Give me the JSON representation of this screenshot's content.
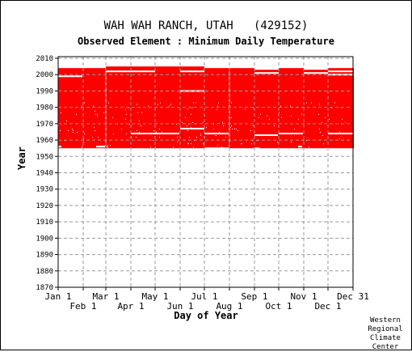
{
  "header": {
    "title": "WAH WAH RANCH, UTAH   (429152)",
    "subtitle": "Observed Element : Minimum Daily Temperature"
  },
  "credit": [
    "Western",
    "Regional",
    "Climate",
    "Center"
  ],
  "chart_data": {
    "type": "heatmap",
    "title": "WAH WAH RANCH, UTAH   (429152)",
    "subtitle": "Observed Element : Minimum Daily Temperature",
    "xlabel": "Day of Year",
    "ylabel": "Year",
    "xlim": [
      1,
      366
    ],
    "ylim": [
      1870,
      2011
    ],
    "y_ticks": [
      1870,
      1880,
      1890,
      1900,
      1910,
      1920,
      1930,
      1940,
      1950,
      1960,
      1970,
      1980,
      1990,
      2000,
      2010
    ],
    "x_ticks_top_row": [
      {
        "label": "Jan 1",
        "day": 1
      },
      {
        "label": "Mar 1",
        "day": 60
      },
      {
        "label": "May 1",
        "day": 121
      },
      {
        "label": "Jul 1",
        "day": 182
      },
      {
        "label": "Sep 1",
        "day": 244
      },
      {
        "label": "Nov 1",
        "day": 305
      },
      {
        "label": "Dec 31",
        "day": 366
      }
    ],
    "x_ticks_bottom_row": [
      {
        "label": "Feb 1",
        "day": 32
      },
      {
        "label": "Apr 1",
        "day": 91
      },
      {
        "label": "Jun 1",
        "day": 152
      },
      {
        "label": "Aug 1",
        "day": 213
      },
      {
        "label": "Oct 1",
        "day": 274
      },
      {
        "label": "Dec 1",
        "day": 335
      }
    ],
    "grid": true,
    "color": "#ff0000",
    "record_start_year": 1955,
    "monthly_end_year": [
      {
        "from_day": 1,
        "to_day": 31,
        "end_year": 2004
      },
      {
        "from_day": 32,
        "to_day": 59,
        "end_year": 2004
      },
      {
        "from_day": 60,
        "to_day": 90,
        "end_year": 2005
      },
      {
        "from_day": 91,
        "to_day": 120,
        "end_year": 2005
      },
      {
        "from_day": 121,
        "to_day": 151,
        "end_year": 2005
      },
      {
        "from_day": 152,
        "to_day": 181,
        "end_year": 2005
      },
      {
        "from_day": 182,
        "to_day": 212,
        "end_year": 2004
      },
      {
        "from_day": 213,
        "to_day": 243,
        "end_year": 2004
      },
      {
        "from_day": 244,
        "to_day": 273,
        "end_year": 2003
      },
      {
        "from_day": 274,
        "to_day": 304,
        "end_year": 2004
      },
      {
        "from_day": 305,
        "to_day": 334,
        "end_year": 2003
      },
      {
        "from_day": 335,
        "to_day": 366,
        "end_year": 2004
      }
    ],
    "missing_year_segments": [
      {
        "year": 1999,
        "from_day": 1,
        "to_day": 31
      },
      {
        "year": 2002,
        "from_day": 60,
        "to_day": 121
      },
      {
        "year": 2002,
        "from_day": 152,
        "to_day": 182
      },
      {
        "year": 1990,
        "from_day": 152,
        "to_day": 182
      },
      {
        "year": 1967,
        "from_day": 152,
        "to_day": 182
      },
      {
        "year": 1964,
        "from_day": 91,
        "to_day": 151
      },
      {
        "year": 1964,
        "from_day": 182,
        "to_day": 212
      },
      {
        "year": 1963,
        "from_day": 244,
        "to_day": 273
      },
      {
        "year": 1964,
        "from_day": 274,
        "to_day": 304
      },
      {
        "year": 2001,
        "from_day": 244,
        "to_day": 274
      },
      {
        "year": 2001,
        "from_day": 305,
        "to_day": 335
      },
      {
        "year": 2002,
        "from_day": 335,
        "to_day": 366
      },
      {
        "year": 2000,
        "from_day": 335,
        "to_day": 366
      },
      {
        "year": 1964,
        "from_day": 335,
        "to_day": 366
      },
      {
        "year": 1956,
        "from_day": 1,
        "to_day": 5
      },
      {
        "year": 1956,
        "from_day": 48,
        "to_day": 59
      },
      {
        "year": 1955,
        "from_day": 182,
        "to_day": 213
      },
      {
        "year": 1955,
        "from_day": 244,
        "to_day": 250
      },
      {
        "year": 1956,
        "from_day": 298,
        "to_day": 303
      }
    ],
    "month_gap_days": [
      59,
      212
    ]
  }
}
